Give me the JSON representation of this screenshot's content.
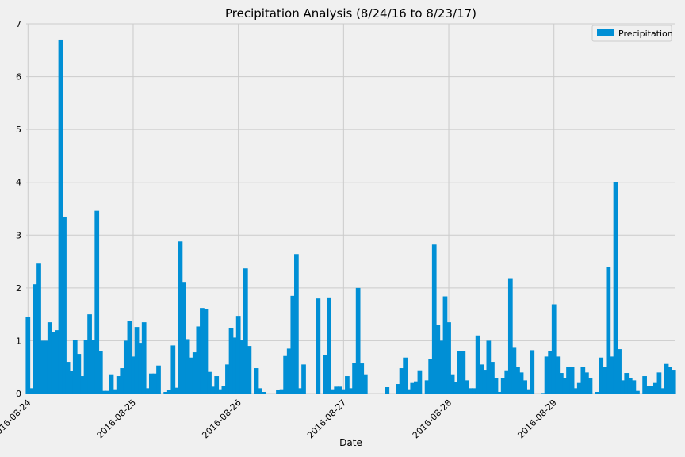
{
  "chart_data": {
    "type": "bar",
    "title": "Precipitation Analysis (8/24/16 to 8/23/17)",
    "xlabel": "Date",
    "ylabel": "",
    "ylim": [
      0,
      7
    ],
    "y_ticks": [
      0,
      1,
      2,
      3,
      4,
      5,
      6,
      7
    ],
    "x_tick_labels": [
      "2016-08-24",
      "2016-08-25",
      "2016-08-26",
      "2016-08-27",
      "2016-08-28",
      "2016-08-29"
    ],
    "x_tick_indices": [
      0,
      29,
      58,
      87,
      116,
      145
    ],
    "grid": true,
    "legend_position": "top-right",
    "color": "#008fd5",
    "series": [
      {
        "name": "Precipitation",
        "values": [
          1.45,
          0.1,
          2.07,
          2.46,
          1.0,
          1.0,
          1.35,
          1.17,
          1.2,
          6.7,
          3.35,
          0.6,
          0.43,
          1.02,
          0.75,
          0.33,
          1.02,
          1.5,
          1.02,
          3.46,
          0.8,
          0.05,
          0.05,
          0.35,
          0.08,
          0.33,
          0.48,
          1.0,
          1.37,
          0.7,
          1.26,
          0.96,
          1.35,
          0.1,
          0.38,
          0.38,
          0.53,
          0.0,
          0.03,
          0.06,
          0.91,
          0.11,
          2.88,
          2.1,
          1.03,
          0.68,
          0.78,
          1.27,
          1.62,
          1.6,
          0.41,
          0.13,
          0.33,
          0.08,
          0.14,
          0.55,
          1.24,
          1.06,
          1.47,
          1.02,
          2.37,
          0.9,
          0.0,
          0.48,
          0.1,
          0.03,
          0.0,
          0.0,
          0.0,
          0.07,
          0.08,
          0.71,
          0.85,
          1.85,
          2.64,
          0.1,
          0.55,
          0.0,
          0.0,
          0.0,
          1.8,
          0.0,
          0.73,
          1.82,
          0.08,
          0.13,
          0.13,
          0.08,
          0.33,
          0.1,
          0.58,
          2.0,
          0.57,
          0.35,
          0.0,
          0.0,
          0.0,
          0.0,
          0.0,
          0.12,
          0.0,
          0.0,
          0.18,
          0.48,
          0.68,
          0.08,
          0.2,
          0.23,
          0.44,
          0.0,
          0.25,
          0.65,
          2.82,
          1.3,
          1.0,
          1.84,
          1.35,
          0.35,
          0.22,
          0.8,
          0.8,
          0.25,
          0.1,
          0.1,
          1.1,
          0.55,
          0.45,
          1.0,
          0.6,
          0.3,
          0.03,
          0.3,
          0.44,
          2.17,
          0.88,
          0.5,
          0.4,
          0.25,
          0.08,
          0.82,
          0.0,
          0.0,
          0.01,
          0.7,
          0.8,
          1.69,
          0.7,
          0.39,
          0.3,
          0.5,
          0.5,
          0.1,
          0.2,
          0.5,
          0.4,
          0.3,
          0.0,
          0.03,
          0.68,
          0.5,
          2.4,
          0.7,
          4.0,
          0.84,
          0.25,
          0.39,
          0.3,
          0.25,
          0.05,
          0.0,
          0.33,
          0.15,
          0.15,
          0.2,
          0.4,
          0.1,
          0.56,
          0.5,
          0.45
        ]
      }
    ]
  }
}
